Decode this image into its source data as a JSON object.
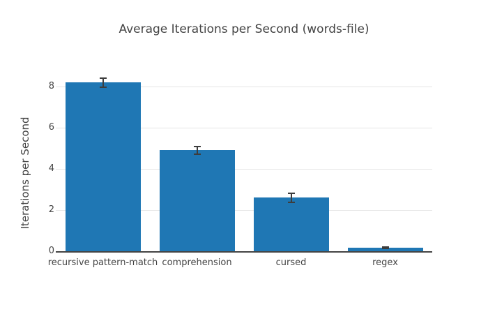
{
  "chart_data": {
    "type": "bar",
    "title": "Average Iterations per Second (words-file)",
    "xlabel": "",
    "ylabel": "Iterations per Second",
    "categories": [
      "recursive pattern-match",
      "comprehension",
      "cursed",
      "regex"
    ],
    "values": [
      8.2,
      4.9,
      2.6,
      0.17
    ],
    "error_bars": [
      0.22,
      0.2,
      0.22,
      0.03
    ],
    "yticks": [
      0,
      2,
      4,
      6,
      8
    ],
    "ylim": [
      0,
      9.0
    ],
    "grid": true,
    "legend": "none",
    "colors": {
      "bar": "#1f77b4",
      "error": "#3d3d3d",
      "grid": "#e6e6e6",
      "axis_line": "#444444",
      "text": "#444444",
      "background": "#ffffff"
    }
  }
}
